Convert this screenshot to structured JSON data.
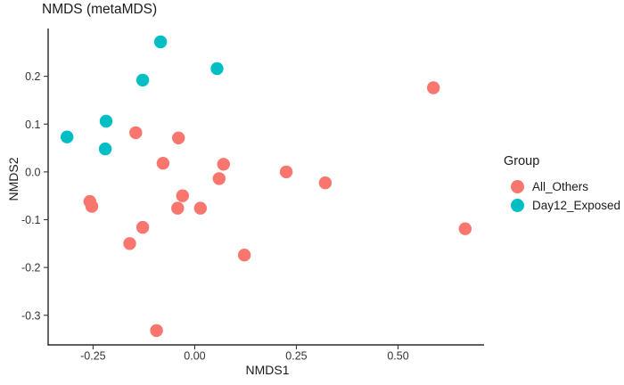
{
  "chart_data": {
    "type": "scatter",
    "title": "NMDS (metaMDS)",
    "xlabel": "NMDS1",
    "ylabel": "NMDS2",
    "xlim": [
      -0.3605,
      0.7115
    ],
    "ylim": [
      -0.362,
      0.3
    ],
    "grid": false,
    "x_ticks": {
      "values": [
        -0.25,
        0.0,
        0.25,
        0.5
      ],
      "labels": [
        "-0.25",
        "0.00",
        "0.25",
        "0.50"
      ]
    },
    "y_ticks": {
      "values": [
        0.2,
        0.1,
        0.0,
        -0.1,
        -0.2,
        -0.3
      ],
      "labels": [
        "0.2",
        "0.1",
        "0.0",
        "-0.1",
        "-0.2",
        "-0.3"
      ]
    },
    "legend": {
      "title": "Group",
      "position": "right"
    },
    "point_radius_px": 7.2,
    "series": [
      {
        "name": "All_Others",
        "color": "#F8766D",
        "points": [
          [
            -0.145,
            0.082
          ],
          [
            -0.04,
            0.071
          ],
          [
            -0.078,
            0.018
          ],
          [
            0.071,
            0.016
          ],
          [
            0.06,
            -0.014
          ],
          [
            0.225,
            0.0
          ],
          [
            -0.03,
            -0.05
          ],
          [
            -0.258,
            -0.062
          ],
          [
            -0.253,
            -0.072
          ],
          [
            -0.042,
            -0.076
          ],
          [
            0.014,
            -0.076
          ],
          [
            -0.128,
            -0.116
          ],
          [
            -0.16,
            -0.15
          ],
          [
            0.122,
            -0.174
          ],
          [
            -0.094,
            -0.332
          ],
          [
            0.587,
            0.176
          ],
          [
            0.321,
            -0.023
          ],
          [
            0.665,
            -0.119
          ]
        ]
      },
      {
        "name": "Day12_Exposed",
        "color": "#00BFC4",
        "points": [
          [
            -0.084,
            0.272
          ],
          [
            0.055,
            0.216
          ],
          [
            -0.128,
            0.192
          ],
          [
            -0.218,
            0.106
          ],
          [
            -0.314,
            0.073
          ],
          [
            -0.22,
            0.048
          ]
        ]
      }
    ]
  }
}
